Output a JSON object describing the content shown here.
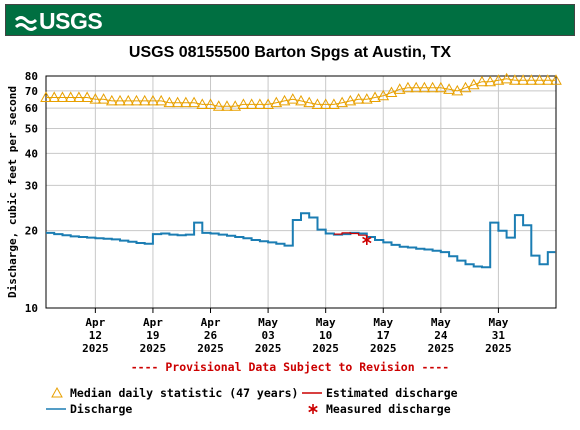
{
  "banner": {
    "logo_text": "USGS"
  },
  "chart_data": {
    "type": "line",
    "title": "USGS 08155500 Barton Spgs at Austin, TX",
    "ylabel": "Discharge, cubic feet per second",
    "yscale": "log",
    "ylim": [
      10,
      80
    ],
    "yticks": [
      10,
      20,
      30,
      40,
      50,
      60,
      70,
      80
    ],
    "ytick_labels": [
      "10",
      "20",
      "30",
      "40",
      "50",
      "60",
      "70",
      "80"
    ],
    "xlim": [
      "2025-04-06",
      "2025-06-07"
    ],
    "xticks": [
      {
        "date": "2025-04-12",
        "label": [
          "Apr",
          "12",
          "2025"
        ]
      },
      {
        "date": "2025-04-19",
        "label": [
          "Apr",
          "19",
          "2025"
        ]
      },
      {
        "date": "2025-04-26",
        "label": [
          "Apr",
          "26",
          "2025"
        ]
      },
      {
        "date": "2025-05-03",
        "label": [
          "May",
          "03",
          "2025"
        ]
      },
      {
        "date": "2025-05-10",
        "label": [
          "May",
          "10",
          "2025"
        ]
      },
      {
        "date": "2025-05-17",
        "label": [
          "May",
          "17",
          "2025"
        ]
      },
      {
        "date": "2025-05-24",
        "label": [
          "May",
          "24",
          "2025"
        ]
      },
      {
        "date": "2025-05-31",
        "label": [
          "May",
          "31",
          "2025"
        ]
      }
    ],
    "grid": true,
    "note": "---- Provisional Data Subject to Revision ----",
    "series": [
      {
        "name": "Median daily statistic (47 years)",
        "marker": "triangle",
        "color": "#e8a000",
        "x": [
          "2025-04-06",
          "2025-04-07",
          "2025-04-08",
          "2025-04-09",
          "2025-04-10",
          "2025-04-11",
          "2025-04-12",
          "2025-04-13",
          "2025-04-14",
          "2025-04-15",
          "2025-04-16",
          "2025-04-17",
          "2025-04-18",
          "2025-04-19",
          "2025-04-20",
          "2025-04-21",
          "2025-04-22",
          "2025-04-23",
          "2025-04-24",
          "2025-04-25",
          "2025-04-26",
          "2025-04-27",
          "2025-04-28",
          "2025-04-29",
          "2025-04-30",
          "2025-05-01",
          "2025-05-02",
          "2025-05-03",
          "2025-05-04",
          "2025-05-05",
          "2025-05-06",
          "2025-05-07",
          "2025-05-08",
          "2025-05-09",
          "2025-05-10",
          "2025-05-11",
          "2025-05-12",
          "2025-05-13",
          "2025-05-14",
          "2025-05-15",
          "2025-05-16",
          "2025-05-17",
          "2025-05-18",
          "2025-05-19",
          "2025-05-20",
          "2025-05-21",
          "2025-05-22",
          "2025-05-23",
          "2025-05-24",
          "2025-05-25",
          "2025-05-26",
          "2025-05-27",
          "2025-05-28",
          "2025-05-29",
          "2025-05-30",
          "2025-05-31",
          "2025-06-01",
          "2025-06-02",
          "2025-06-03",
          "2025-06-04",
          "2025-06-05",
          "2025-06-06",
          "2025-06-07"
        ],
        "y": [
          66,
          66,
          66,
          66,
          66,
          66,
          65,
          65,
          64,
          64,
          64,
          64,
          64,
          64,
          64,
          63,
          63,
          63,
          63,
          62,
          62,
          61,
          61,
          61,
          62,
          62,
          62,
          62,
          63,
          64,
          65,
          64,
          63,
          62,
          62,
          62,
          63,
          64,
          65,
          65,
          66,
          67,
          69,
          71,
          72,
          72,
          72,
          72,
          72,
          71,
          70,
          72,
          74,
          76,
          76,
          77,
          78,
          77,
          77,
          77,
          77,
          77,
          77
        ]
      },
      {
        "name": "Discharge",
        "color": "#1b7db3",
        "x": [
          "2025-04-06",
          "2025-04-07",
          "2025-04-08",
          "2025-04-09",
          "2025-04-10",
          "2025-04-11",
          "2025-04-12",
          "2025-04-13",
          "2025-04-14",
          "2025-04-15",
          "2025-04-16",
          "2025-04-17",
          "2025-04-18",
          "2025-04-19",
          "2025-04-20",
          "2025-04-21",
          "2025-04-22",
          "2025-04-23",
          "2025-04-24",
          "2025-04-25",
          "2025-04-26",
          "2025-04-27",
          "2025-04-28",
          "2025-04-29",
          "2025-04-30",
          "2025-05-01",
          "2025-05-02",
          "2025-05-03",
          "2025-05-04",
          "2025-05-05",
          "2025-05-06",
          "2025-05-07",
          "2025-05-08",
          "2025-05-09",
          "2025-05-10",
          "2025-05-11",
          "2025-05-12",
          "2025-05-13",
          "2025-05-14",
          "2025-05-15",
          "2025-05-16",
          "2025-05-17",
          "2025-05-18",
          "2025-05-19",
          "2025-05-20",
          "2025-05-21",
          "2025-05-22",
          "2025-05-23",
          "2025-05-24",
          "2025-05-25",
          "2025-05-26",
          "2025-05-27",
          "2025-05-28",
          "2025-05-29",
          "2025-05-30",
          "2025-05-31",
          "2025-06-01",
          "2025-06-02",
          "2025-06-03",
          "2025-06-04",
          "2025-06-05",
          "2025-06-06"
        ],
        "y": [
          19.6,
          19.4,
          19.2,
          19.0,
          18.9,
          18.8,
          18.7,
          18.6,
          18.5,
          18.3,
          18.1,
          17.9,
          17.8,
          19.4,
          19.5,
          19.3,
          19.2,
          19.3,
          21.5,
          19.6,
          19.5,
          19.3,
          19.1,
          18.9,
          18.7,
          18.4,
          18.2,
          18.0,
          17.8,
          17.5,
          22.0,
          23.4,
          22.5,
          20.2,
          19.5,
          19.3,
          19.4,
          19.6,
          19.5,
          18.9,
          18.4,
          18.0,
          17.6,
          17.3,
          17.2,
          17.0,
          16.9,
          16.7,
          16.5,
          15.9,
          15.3,
          14.8,
          14.5,
          14.4,
          21.5,
          20.0,
          18.8,
          23.0,
          21.0,
          16.0,
          14.8,
          16.5
        ]
      },
      {
        "name": "Estimated discharge",
        "color": "#cc0000",
        "x": [
          "2025-05-11",
          "2025-05-12",
          "2025-05-13",
          "2025-05-14"
        ],
        "y": [
          19.4,
          19.6,
          19.5,
          19.2
        ]
      },
      {
        "name": "Measured discharge",
        "marker": "asterisk",
        "color": "#cc0000",
        "x": [
          "2025-05-15"
        ],
        "y": [
          18.4
        ]
      }
    ],
    "legend": {
      "position": "bottom",
      "items": [
        {
          "label": "Median daily statistic (47 years)",
          "symbol": "triangle",
          "color": "#e8a000"
        },
        {
          "label": "Estimated discharge",
          "symbol": "line",
          "color": "#cc0000"
        },
        {
          "label": "Discharge",
          "symbol": "line",
          "color": "#1b7db3"
        },
        {
          "label": "Measured discharge",
          "symbol": "asterisk",
          "color": "#cc0000"
        }
      ]
    }
  }
}
